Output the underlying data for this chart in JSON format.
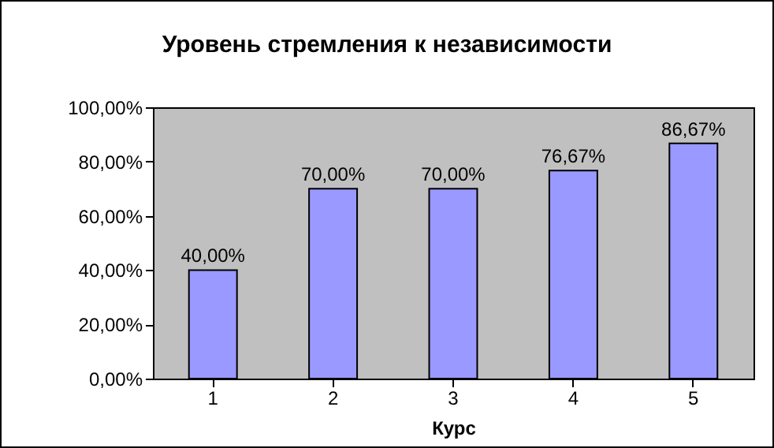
{
  "chart_data": {
    "type": "bar",
    "title": "Уровень стремления к независимости",
    "xlabel": "Курс",
    "categories": [
      "1",
      "2",
      "3",
      "4",
      "5"
    ],
    "values": [
      40,
      70,
      70,
      76.67,
      86.67
    ],
    "value_labels": [
      "40,00%",
      "70,00%",
      "70,00%",
      "76,67%",
      "86,67%"
    ],
    "color": "#9999ff",
    "ylim": [
      0,
      100
    ],
    "yticks": [
      {
        "value": 0,
        "label": "0,00%"
      },
      {
        "value": 20,
        "label": "20,00%"
      },
      {
        "value": 40,
        "label": "40,00%"
      },
      {
        "value": 60,
        "label": "60,00%"
      },
      {
        "value": 80,
        "label": "80,00%"
      },
      {
        "value": 100,
        "label": "100,00%"
      }
    ],
    "grid": false
  }
}
